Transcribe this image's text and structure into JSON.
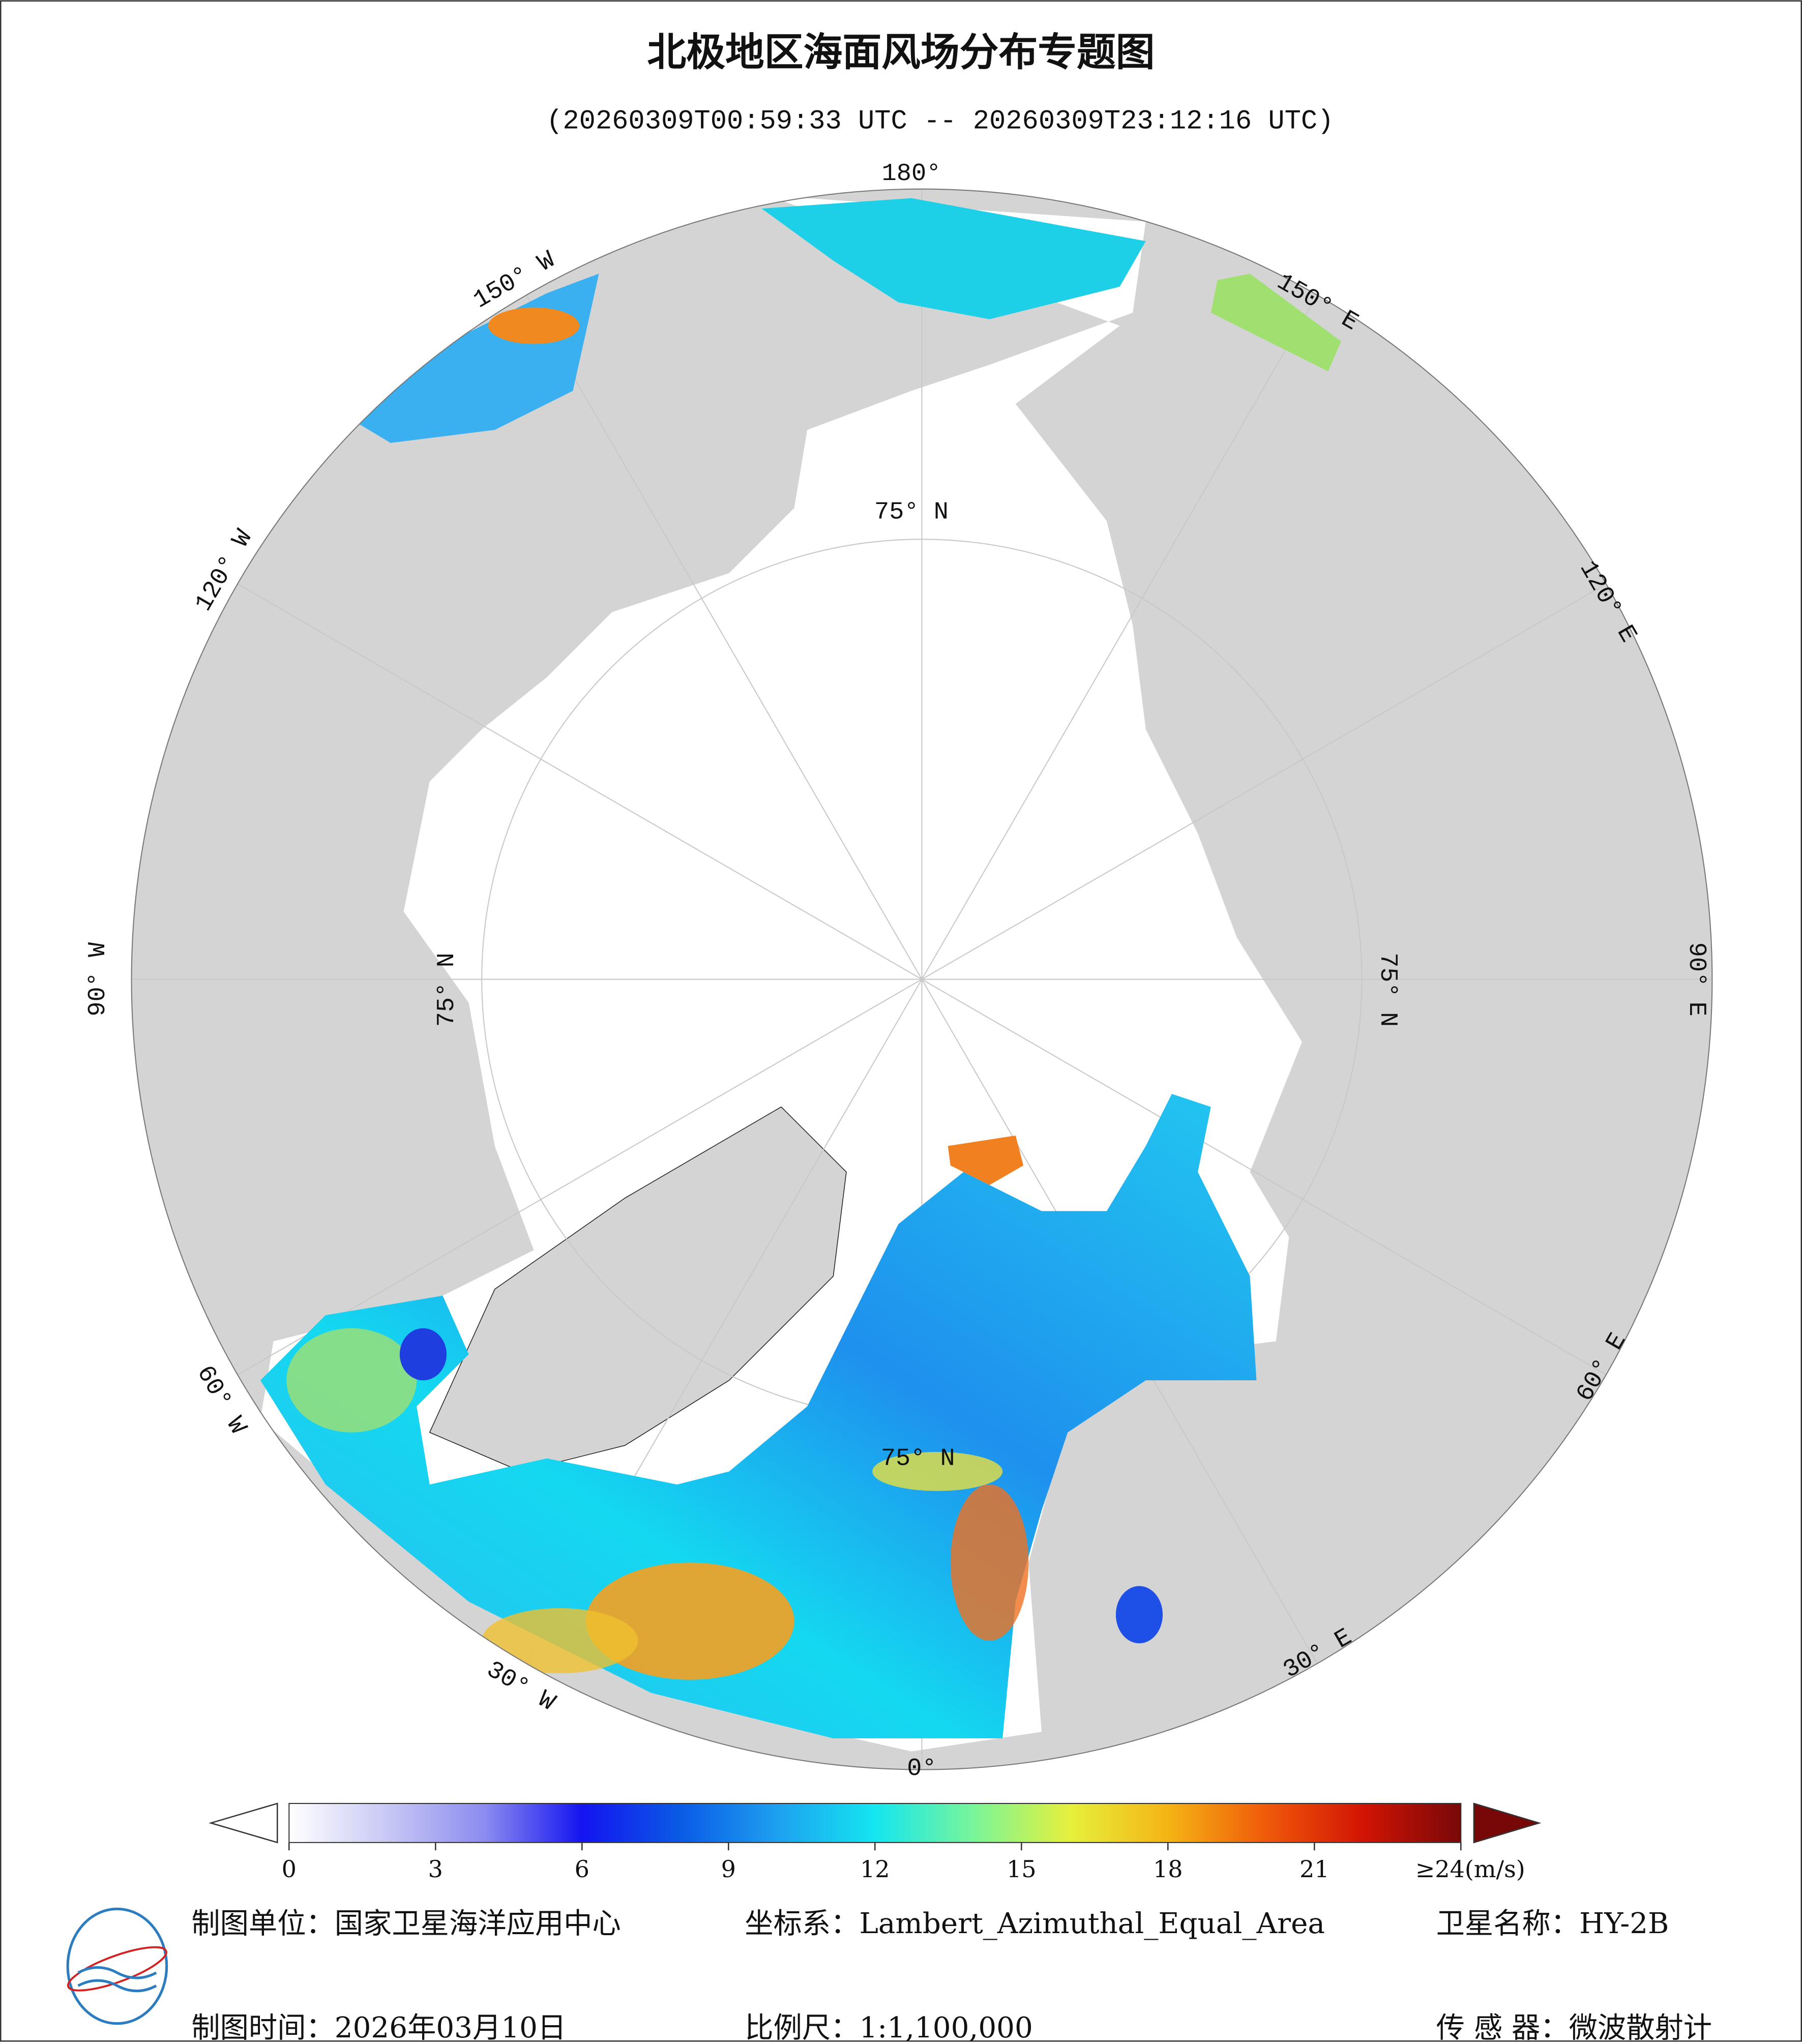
{
  "map": {
    "title": "北极地区海面风场分布专题图",
    "subtitle": "(20260309T00:59:33 UTC -- 20260309T23:12:16 UTC)",
    "longitude_labels": [
      "180°",
      "150° W",
      "120° W",
      "90° W",
      "60° W",
      "30° W",
      "0°",
      "30° E",
      "60° E",
      "90° E",
      "120° E",
      "150° E"
    ],
    "latitude_labels": [
      "75° N",
      "75° N",
      "75° N",
      "75° N"
    ]
  },
  "colorbar": {
    "range": [
      0,
      24
    ],
    "ticks": [
      0,
      3,
      6,
      9,
      12,
      15,
      18,
      21,
      {
        "value": 24,
        "label": "≥24(m/s)"
      }
    ],
    "colors": [
      "#ffffff",
      "#c8c8f5",
      "#8c8cf0",
      "#1414f0",
      "#0a5ae6",
      "#1ea0f0",
      "#14e6f0",
      "#78f59a",
      "#e6f03c",
      "#f5b414",
      "#f05a0a",
      "#d21404",
      "#780808"
    ]
  },
  "footer": {
    "unit": "制图单位：国家卫星海洋应用中心",
    "date": "制图时间：2026年03月10日",
    "projection": "坐标系：Lambert_Azimuthal_Equal_Area",
    "scale": "比例尺：1:1,100,000",
    "satellite": "卫星名称：HY-2B",
    "sensor": "传 感 器：微波散射计"
  }
}
